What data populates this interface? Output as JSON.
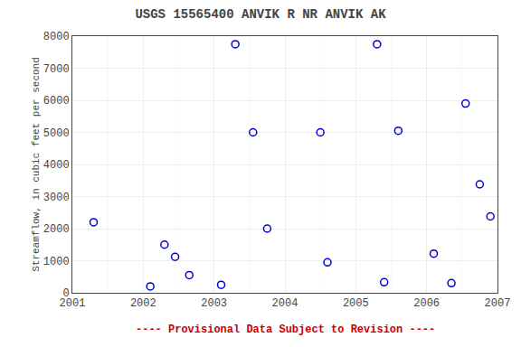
{
  "chart_data": {
    "type": "scatter",
    "title": "USGS 15565400 ANVIK R NR ANVIK AK",
    "ylabel": "Streamflow, in cubic feet per second",
    "annotations": [
      {
        "text": "---- Provisional Data Subject to Revision ----",
        "color": "#cc0000"
      }
    ],
    "x": [
      2001.3,
      2002.1,
      2002.3,
      2002.45,
      2002.65,
      2003.1,
      2003.3,
      2003.55,
      2003.75,
      2004.5,
      2004.6,
      2005.4,
      2005.3,
      2005.6,
      2006.1,
      2006.35,
      2006.55,
      2006.75,
      2006.9
    ],
    "values": [
      2200,
      200,
      1500,
      1120,
      550,
      250,
      7750,
      5000,
      2000,
      5000,
      950,
      330,
      7750,
      5050,
      1220,
      300,
      5900,
      3380,
      2380
    ],
    "color": "#0000cc",
    "marker": "circle-open",
    "xlim": [
      2001,
      2007
    ],
    "ylim": [
      0,
      8000
    ],
    "xticks": [
      2001,
      2002,
      2003,
      2004,
      2005,
      2006,
      2007
    ],
    "yticks": [
      0,
      1000,
      2000,
      3000,
      4000,
      5000,
      6000,
      7000,
      8000
    ],
    "xminor": [
      2001.5,
      2002.5,
      2003.5,
      2004.5,
      2005.5,
      2006.5
    ],
    "grid": true
  }
}
